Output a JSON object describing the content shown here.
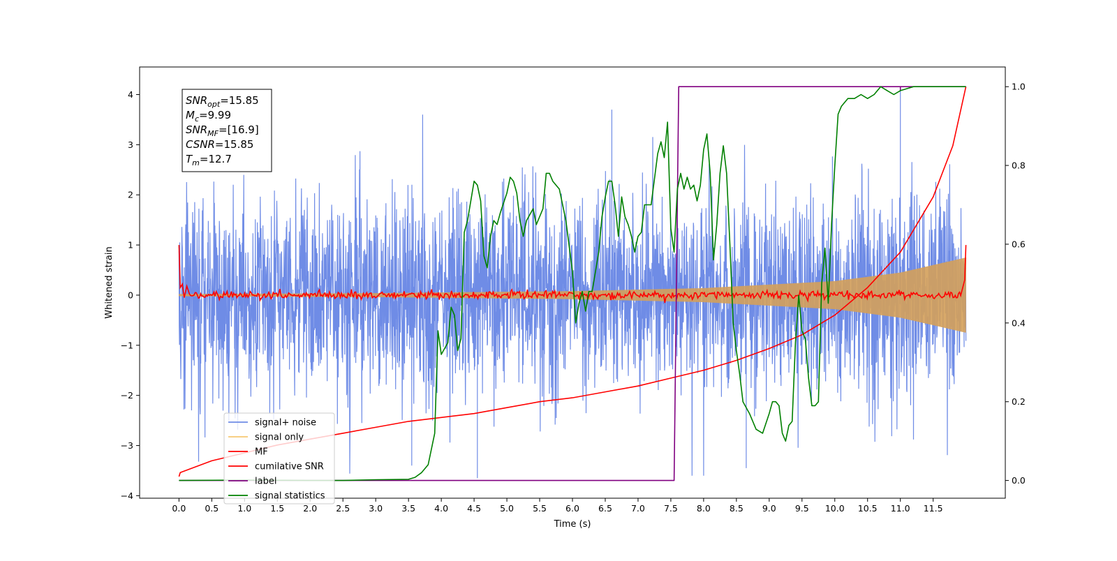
{
  "chart_data": {
    "type": "line",
    "xlabel": "Time (s)",
    "ylabel": "Whitened strain",
    "xlim": [
      -0.6,
      12.6
    ],
    "ylim_left": [
      -4.05,
      4.55
    ],
    "ylim_right": [
      -0.045,
      1.05
    ],
    "x_ticks": [
      0.0,
      0.5,
      1.0,
      1.5,
      2.0,
      2.5,
      3.0,
      3.5,
      4.0,
      4.5,
      5.0,
      5.5,
      6.0,
      6.5,
      7.0,
      7.5,
      8.0,
      8.5,
      9.0,
      9.5,
      10.0,
      10.5,
      11.0,
      11.5
    ],
    "x_tick_labels": [
      "0.0",
      "0.5",
      "1.0",
      "1.5",
      "2.0",
      "2.5",
      "3.0",
      "3.5",
      "4.0",
      "4.5",
      "5.0",
      "5.5",
      "6.0",
      "6.5",
      "7.0",
      "7.5",
      "8.0",
      "8.5",
      "9.0",
      "9.5",
      "10.0",
      "10.5",
      "11.0",
      "11.5"
    ],
    "y_left_ticks": [
      4,
      3,
      2,
      1,
      0,
      -1,
      -2,
      -3,
      -4
    ],
    "y_left_tick_labels": [
      "4",
      "3",
      "2",
      "1",
      "0",
      "−1",
      "−2",
      "−3",
      "−4"
    ],
    "y_right_ticks": [
      1.0,
      0.8,
      0.6,
      0.4,
      0.2,
      0.0
    ],
    "y_right_tick_labels": [
      "1.0",
      "0.8",
      "0.6",
      "0.4",
      "0.2",
      "0.0"
    ],
    "grid": false,
    "legend_position": "lower-left",
    "legend": [
      {
        "label": "signal+ noise",
        "color": "#6f8ce6"
      },
      {
        "label": "signal only",
        "color": "#f7c873"
      },
      {
        "label": "MF",
        "color": "#ff0000"
      },
      {
        "label": "cumilative SNR",
        "color": "#ff0000"
      },
      {
        "label": "label",
        "color": "#800080"
      },
      {
        "label": "signal statistics",
        "color": "#008000"
      }
    ],
    "annotation": [
      {
        "sym": "SNR",
        "sub": "opt",
        "val": "=15.85"
      },
      {
        "sym": "M",
        "sub": "c",
        "val": "=9.99"
      },
      {
        "sym": "SNR",
        "sub": "MF",
        "val": "=[16.9]"
      },
      {
        "sym": "CSNR",
        "sub": "",
        "val": "=15.85"
      },
      {
        "sym": "T",
        "sub": "m",
        "val": "=12.7"
      }
    ],
    "series": [
      {
        "name": "signal+ noise",
        "axis": "left",
        "color": "#6f8ce6",
        "style": "noise",
        "t_range": [
          0,
          12
        ],
        "std": 0.95,
        "outliers": [
          [
            4.55,
            -3.65
          ],
          [
            6.6,
            3.7
          ],
          [
            11.0,
            4.15
          ],
          [
            3.55,
            -3.4
          ],
          [
            8.65,
            -3.45
          ]
        ]
      },
      {
        "name": "signal only",
        "axis": "left",
        "color": "#d4a05a",
        "style": "chirp",
        "t_range": [
          0,
          12
        ],
        "envelope": [
          [
            0,
            0.02
          ],
          [
            3,
            0.04
          ],
          [
            6,
            0.08
          ],
          [
            8,
            0.14
          ],
          [
            10,
            0.28
          ],
          [
            11,
            0.45
          ],
          [
            12,
            0.75
          ]
        ]
      },
      {
        "name": "MF",
        "axis": "left",
        "color": "#ff0000",
        "style": "mf",
        "t_range": [
          0,
          12
        ],
        "start_value": 1.0,
        "end_value": 1.0,
        "baseline_jitter": 0.04
      },
      {
        "name": "cumilative SNR",
        "axis": "right",
        "color": "#ff0000",
        "points": [
          [
            0.0,
            0.01
          ],
          [
            0.02,
            0.02
          ],
          [
            0.5,
            0.05
          ],
          [
            1.0,
            0.07
          ],
          [
            1.5,
            0.09
          ],
          [
            2.0,
            0.105
          ],
          [
            2.5,
            0.12
          ],
          [
            3.0,
            0.135
          ],
          [
            3.5,
            0.15
          ],
          [
            4.0,
            0.16
          ],
          [
            4.5,
            0.17
          ],
          [
            5.0,
            0.185
          ],
          [
            5.5,
            0.2
          ],
          [
            6.0,
            0.21
          ],
          [
            6.5,
            0.225
          ],
          [
            7.0,
            0.24
          ],
          [
            7.5,
            0.26
          ],
          [
            8.0,
            0.28
          ],
          [
            8.5,
            0.305
          ],
          [
            9.0,
            0.335
          ],
          [
            9.5,
            0.37
          ],
          [
            10.0,
            0.42
          ],
          [
            10.5,
            0.49
          ],
          [
            11.0,
            0.58
          ],
          [
            11.5,
            0.72
          ],
          [
            11.8,
            0.85
          ],
          [
            12.0,
            1.0
          ]
        ]
      },
      {
        "name": "label",
        "axis": "right",
        "color": "#800080",
        "points": [
          [
            0.0,
            0.0
          ],
          [
            7.55,
            0.0
          ],
          [
            7.62,
            1.0
          ],
          [
            11.0,
            1.0
          ],
          [
            11.0,
            0.99
          ],
          [
            11.0,
            1.0
          ],
          [
            12.0,
            1.0
          ]
        ]
      },
      {
        "name": "signal statistics",
        "axis": "right",
        "color": "#008000",
        "points": [
          [
            0.0,
            0.0
          ],
          [
            1.0,
            0.001
          ],
          [
            2.0,
            0.0
          ],
          [
            2.5,
            0.0
          ],
          [
            3.0,
            0.002
          ],
          [
            3.5,
            0.003
          ],
          [
            3.6,
            0.008
          ],
          [
            3.7,
            0.02
          ],
          [
            3.8,
            0.04
          ],
          [
            3.9,
            0.12
          ],
          [
            3.95,
            0.38
          ],
          [
            4.0,
            0.32
          ],
          [
            4.1,
            0.35
          ],
          [
            4.15,
            0.44
          ],
          [
            4.2,
            0.42
          ],
          [
            4.25,
            0.33
          ],
          [
            4.3,
            0.36
          ],
          [
            4.35,
            0.63
          ],
          [
            4.4,
            0.66
          ],
          [
            4.5,
            0.76
          ],
          [
            4.55,
            0.75
          ],
          [
            4.6,
            0.71
          ],
          [
            4.65,
            0.57
          ],
          [
            4.7,
            0.54
          ],
          [
            4.75,
            0.62
          ],
          [
            4.8,
            0.66
          ],
          [
            4.85,
            0.65
          ],
          [
            4.9,
            0.68
          ],
          [
            5.0,
            0.73
          ],
          [
            5.05,
            0.77
          ],
          [
            5.1,
            0.76
          ],
          [
            5.15,
            0.73
          ],
          [
            5.2,
            0.66
          ],
          [
            5.25,
            0.62
          ],
          [
            5.3,
            0.66
          ],
          [
            5.4,
            0.69
          ],
          [
            5.45,
            0.65
          ],
          [
            5.5,
            0.67
          ],
          [
            5.55,
            0.69
          ],
          [
            5.6,
            0.78
          ],
          [
            5.65,
            0.78
          ],
          [
            5.7,
            0.76
          ],
          [
            5.8,
            0.74
          ],
          [
            5.9,
            0.66
          ],
          [
            6.0,
            0.53
          ],
          [
            6.05,
            0.4
          ],
          [
            6.1,
            0.45
          ],
          [
            6.15,
            0.48
          ],
          [
            6.2,
            0.43
          ],
          [
            6.25,
            0.48
          ],
          [
            6.3,
            0.48
          ],
          [
            6.4,
            0.58
          ],
          [
            6.45,
            0.67
          ],
          [
            6.5,
            0.72
          ],
          [
            6.55,
            0.76
          ],
          [
            6.6,
            0.76
          ],
          [
            6.65,
            0.7
          ],
          [
            6.7,
            0.62
          ],
          [
            6.75,
            0.72
          ],
          [
            6.8,
            0.67
          ],
          [
            6.85,
            0.65
          ],
          [
            6.9,
            0.62
          ],
          [
            6.95,
            0.58
          ],
          [
            7.0,
            0.62
          ],
          [
            7.05,
            0.63
          ],
          [
            7.1,
            0.7
          ],
          [
            7.15,
            0.7
          ],
          [
            7.2,
            0.7
          ],
          [
            7.3,
            0.83
          ],
          [
            7.35,
            0.86
          ],
          [
            7.4,
            0.82
          ],
          [
            7.45,
            0.91
          ],
          [
            7.5,
            0.64
          ],
          [
            7.55,
            0.58
          ],
          [
            7.6,
            0.74
          ],
          [
            7.65,
            0.78
          ],
          [
            7.7,
            0.74
          ],
          [
            7.75,
            0.77
          ],
          [
            7.8,
            0.74
          ],
          [
            7.85,
            0.75
          ],
          [
            7.9,
            0.71
          ],
          [
            7.95,
            0.75
          ],
          [
            8.0,
            0.84
          ],
          [
            8.05,
            0.88
          ],
          [
            8.1,
            0.78
          ],
          [
            8.15,
            0.56
          ],
          [
            8.2,
            0.65
          ],
          [
            8.25,
            0.78
          ],
          [
            8.3,
            0.85
          ],
          [
            8.35,
            0.78
          ],
          [
            8.4,
            0.6
          ],
          [
            8.45,
            0.4
          ],
          [
            8.5,
            0.33
          ],
          [
            8.55,
            0.27
          ],
          [
            8.6,
            0.2
          ],
          [
            8.7,
            0.17
          ],
          [
            8.8,
            0.13
          ],
          [
            8.9,
            0.12
          ],
          [
            9.0,
            0.17
          ],
          [
            9.05,
            0.2
          ],
          [
            9.1,
            0.2
          ],
          [
            9.15,
            0.19
          ],
          [
            9.2,
            0.12
          ],
          [
            9.25,
            0.1
          ],
          [
            9.3,
            0.14
          ],
          [
            9.35,
            0.15
          ],
          [
            9.4,
            0.35
          ],
          [
            9.45,
            0.47
          ],
          [
            9.5,
            0.38
          ],
          [
            9.55,
            0.36
          ],
          [
            9.6,
            0.26
          ],
          [
            9.65,
            0.19
          ],
          [
            9.7,
            0.19
          ],
          [
            9.75,
            0.2
          ],
          [
            9.8,
            0.5
          ],
          [
            9.85,
            0.59
          ],
          [
            9.9,
            0.45
          ],
          [
            9.95,
            0.65
          ],
          [
            10.0,
            0.8
          ],
          [
            10.05,
            0.93
          ],
          [
            10.1,
            0.95
          ],
          [
            10.2,
            0.97
          ],
          [
            10.3,
            0.97
          ],
          [
            10.4,
            0.98
          ],
          [
            10.5,
            0.97
          ],
          [
            10.6,
            0.98
          ],
          [
            10.7,
            1.0
          ],
          [
            10.8,
            0.99
          ],
          [
            10.9,
            0.98
          ],
          [
            11.0,
            0.99
          ],
          [
            11.2,
            1.0
          ],
          [
            11.5,
            1.0
          ],
          [
            12.0,
            1.0
          ]
        ]
      }
    ]
  }
}
